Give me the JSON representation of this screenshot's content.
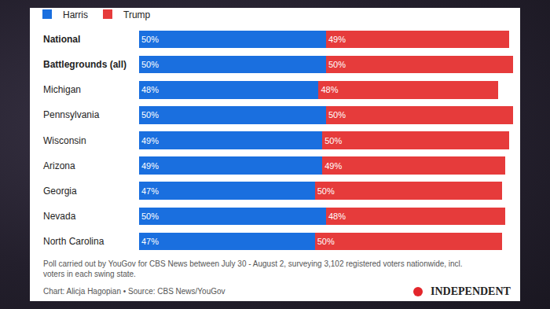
{
  "chart_data": {
    "type": "bar",
    "orientation": "horizontal",
    "stacked": true,
    "data_labels": true,
    "tick_labels": false,
    "grid": false,
    "legend": "top left",
    "xlim": [
      0,
      100
    ],
    "categories": [
      "National",
      "Battlegrounds (all)",
      "Michigan",
      "Pennsylvania",
      "Wisconsin",
      "Arizona",
      "Georgia",
      "Nevada",
      "North Carolina"
    ],
    "series": [
      {
        "name": "Harris",
        "color": "#1a6fdf",
        "values": [
          50,
          50,
          48,
          50,
          49,
          49,
          47,
          50,
          47
        ],
        "value_labels": [
          "50%",
          "50%",
          "48%",
          "50%",
          "49%",
          "49%",
          "47%",
          "50%",
          "47%"
        ]
      },
      {
        "name": "Trump",
        "color": "#e63b3b",
        "values": [
          49,
          50,
          48,
          50,
          50,
          49,
          50,
          48,
          50
        ],
        "value_labels": [
          "49%",
          "50%",
          "48%",
          "50%",
          "50%",
          "49%",
          "50%",
          "48%",
          "50%"
        ]
      }
    ],
    "annotations": [
      "Poll carried out by YouGov for CBS News between July 30 - August 2, surveying 3,102 registered voters nationwide, incl.",
      "voters in each swing state.",
      "Chart: Alicja Hagopian • Source: CBS News/YouGov",
      "INDEPENDENT"
    ]
  }
}
